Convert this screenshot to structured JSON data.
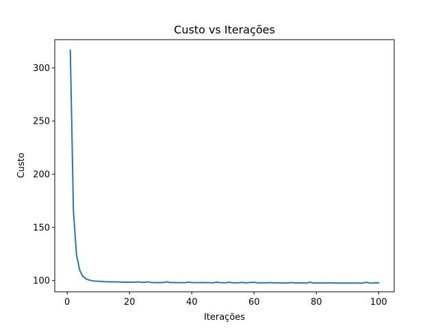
{
  "chart_data": {
    "type": "line",
    "title": "Custo vs Iterações",
    "xlabel": "Iterações",
    "ylabel": "Custo",
    "xlim": [
      -4,
      105
    ],
    "ylim": [
      89.5,
      326.5
    ],
    "xticks": [
      0,
      20,
      40,
      60,
      80,
      100
    ],
    "yticks": [
      100,
      150,
      200,
      250,
      300
    ],
    "grid": false,
    "series": [
      {
        "color": "#1f77b4",
        "x": [
          1,
          2,
          3,
          4,
          5,
          6,
          7,
          8,
          9,
          10,
          11,
          12,
          13,
          14,
          15,
          16,
          17,
          18,
          19,
          20,
          21,
          22,
          23,
          24,
          25,
          26,
          27,
          28,
          29,
          30,
          31,
          32,
          33,
          34,
          35,
          36,
          37,
          38,
          39,
          40,
          41,
          42,
          43,
          44,
          45,
          46,
          47,
          48,
          49,
          50,
          51,
          52,
          53,
          54,
          55,
          56,
          57,
          58,
          59,
          60,
          61,
          62,
          63,
          64,
          65,
          66,
          67,
          68,
          69,
          70,
          71,
          72,
          73,
          74,
          75,
          76,
          77,
          78,
          79,
          80,
          81,
          82,
          83,
          84,
          85,
          86,
          87,
          88,
          89,
          90,
          91,
          92,
          93,
          94,
          95,
          96,
          97,
          98,
          99,
          100
        ],
        "values": [
          316.5,
          165,
          124,
          110,
          104,
          101.8,
          100.5,
          99.9,
          99.5,
          99.4,
          99.3,
          99.0,
          98.9,
          98.8,
          98.8,
          98.7,
          98.7,
          98.6,
          98.5,
          98.6,
          98.5,
          98.6,
          98.8,
          98.3,
          98.5,
          98.8,
          98.2,
          98.2,
          98.1,
          98.2,
          98.2,
          98.9,
          98.2,
          98.2,
          98.1,
          98.1,
          98.1,
          98.1,
          98.6,
          98.2,
          98.1,
          98.1,
          98.2,
          98.2,
          98.1,
          98.0,
          98.0,
          98.6,
          98.1,
          98.0,
          98.0,
          98.5,
          98.0,
          97.9,
          98.0,
          98.3,
          98.0,
          98.0,
          98.3,
          98.4,
          98.0,
          97.9,
          97.9,
          97.9,
          98.2,
          97.9,
          97.9,
          97.9,
          97.8,
          97.8,
          97.8,
          98.3,
          97.8,
          97.8,
          97.9,
          97.8,
          97.8,
          98.5,
          97.8,
          97.8,
          97.8,
          97.8,
          97.8,
          97.9,
          97.9,
          97.7,
          97.8,
          97.7,
          97.7,
          97.7,
          97.7,
          97.7,
          97.7,
          97.7,
          97.8,
          98.4,
          97.8,
          97.7,
          98.0,
          97.9
        ]
      }
    ]
  }
}
